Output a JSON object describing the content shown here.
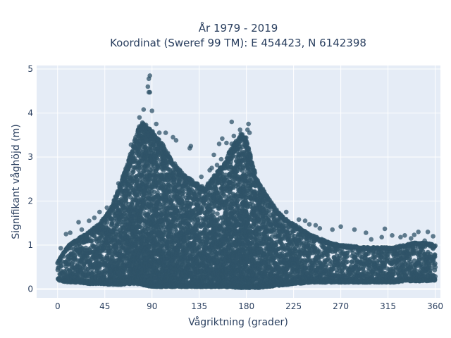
{
  "chart_data": {
    "type": "scatter",
    "title_lines": [
      "År 1979 - 2019",
      "Koordinat (Sweref 99 TM): E 454423, N 6142398"
    ],
    "xlabel": "Vågriktning (grader)",
    "ylabel": "Signifikant våghöjd (m)",
    "xlim": [
      -20,
      365
    ],
    "ylim": [
      -0.2,
      5.08
    ],
    "x_ticks": [
      0,
      45,
      90,
      135,
      180,
      225,
      270,
      315,
      360
    ],
    "x_tick_labels": [
      "0",
      "45",
      "90",
      "135",
      "180",
      "225",
      "270",
      "315",
      "360"
    ],
    "y_ticks": [
      0,
      1,
      2,
      3,
      4,
      5
    ],
    "y_tick_labels": [
      "0",
      "1",
      "2",
      "3",
      "4",
      "5"
    ],
    "grid": true,
    "legend": "none",
    "marker_color": "#2f5368",
    "plot_background": "#e5ecf6",
    "direction_range": [
      0,
      360
    ],
    "height_envelope": {
      "direction": [
        0,
        10,
        20,
        30,
        40,
        50,
        60,
        70,
        75,
        80,
        85,
        90,
        95,
        100,
        110,
        120,
        130,
        140,
        150,
        160,
        165,
        170,
        175,
        180,
        185,
        190,
        200,
        210,
        220,
        230,
        240,
        250,
        260,
        270,
        280,
        290,
        300,
        310,
        320,
        330,
        340,
        350,
        360
      ],
      "lower": [
        0.2,
        0.15,
        0.15,
        0.12,
        0.12,
        0.1,
        0.1,
        0.12,
        0.12,
        0.1,
        0.08,
        0.05,
        0.05,
        0.05,
        0.05,
        0.05,
        0.05,
        0.05,
        0.05,
        0.05,
        0.05,
        0.03,
        0.03,
        0.03,
        0.03,
        0.03,
        0.05,
        0.08,
        0.1,
        0.12,
        0.15,
        0.15,
        0.15,
        0.15,
        0.15,
        0.15,
        0.15,
        0.15,
        0.15,
        0.18,
        0.18,
        0.18,
        0.2
      ],
      "upper": [
        0.6,
        1.0,
        1.15,
        1.3,
        1.5,
        1.8,
        2.4,
        3.1,
        3.5,
        3.85,
        3.7,
        3.6,
        3.45,
        3.3,
        2.9,
        2.6,
        2.45,
        2.3,
        2.6,
        2.9,
        3.2,
        3.35,
        3.55,
        3.45,
        2.9,
        2.5,
        2.1,
        1.75,
        1.55,
        1.4,
        1.25,
        1.15,
        1.05,
        1.0,
        0.98,
        0.95,
        0.95,
        0.95,
        0.95,
        1.0,
        1.05,
        1.05,
        1.0
      ]
    },
    "outliers": [
      {
        "x": 88,
        "y": 4.85
      },
      {
        "x": 87,
        "y": 4.78
      },
      {
        "x": 86,
        "y": 4.6
      },
      {
        "x": 87,
        "y": 4.47
      },
      {
        "x": 88,
        "y": 4.47
      },
      {
        "x": 82,
        "y": 4.08
      },
      {
        "x": 90,
        "y": 4.05
      },
      {
        "x": 78,
        "y": 3.9
      },
      {
        "x": 94,
        "y": 3.75
      },
      {
        "x": 97,
        "y": 3.55
      },
      {
        "x": 103,
        "y": 3.55
      },
      {
        "x": 110,
        "y": 3.45
      },
      {
        "x": 113,
        "y": 3.38
      },
      {
        "x": 127,
        "y": 3.25
      },
      {
        "x": 126,
        "y": 3.2
      },
      {
        "x": 70,
        "y": 3.28
      },
      {
        "x": 166,
        "y": 3.8
      },
      {
        "x": 182,
        "y": 3.75
      },
      {
        "x": 174,
        "y": 3.62
      },
      {
        "x": 181,
        "y": 3.62
      },
      {
        "x": 183,
        "y": 3.55
      },
      {
        "x": 168,
        "y": 3.48
      },
      {
        "x": 157,
        "y": 3.42
      },
      {
        "x": 161,
        "y": 3.32
      },
      {
        "x": 154,
        "y": 3.3
      },
      {
        "x": 166,
        "y": 3.3
      },
      {
        "x": 149,
        "y": 3.05
      },
      {
        "x": 156,
        "y": 2.95
      },
      {
        "x": 152,
        "y": 2.82
      },
      {
        "x": 147,
        "y": 2.75
      },
      {
        "x": 165,
        "y": 3.05
      },
      {
        "x": 145,
        "y": 2.7
      },
      {
        "x": 137,
        "y": 2.55
      },
      {
        "x": 58,
        "y": 2.4
      },
      {
        "x": 55,
        "y": 2.1
      },
      {
        "x": 47,
        "y": 1.85
      },
      {
        "x": 40,
        "y": 1.75
      },
      {
        "x": 35,
        "y": 1.62
      },
      {
        "x": 30,
        "y": 1.55
      },
      {
        "x": 20,
        "y": 1.52
      },
      {
        "x": 23,
        "y": 1.35
      },
      {
        "x": 12,
        "y": 1.28
      },
      {
        "x": 8,
        "y": 1.25
      },
      {
        "x": 3,
        "y": 0.93
      },
      {
        "x": 218,
        "y": 1.75
      },
      {
        "x": 230,
        "y": 1.58
      },
      {
        "x": 236,
        "y": 1.55
      },
      {
        "x": 240,
        "y": 1.47
      },
      {
        "x": 246,
        "y": 1.45
      },
      {
        "x": 250,
        "y": 1.38
      },
      {
        "x": 262,
        "y": 1.35
      },
      {
        "x": 270,
        "y": 1.42
      },
      {
        "x": 283,
        "y": 1.35
      },
      {
        "x": 294,
        "y": 1.28
      },
      {
        "x": 309,
        "y": 1.18
      },
      {
        "x": 312,
        "y": 1.37
      },
      {
        "x": 319,
        "y": 1.22
      },
      {
        "x": 327,
        "y": 1.18
      },
      {
        "x": 331,
        "y": 1.22
      },
      {
        "x": 340,
        "y": 1.23
      },
      {
        "x": 344,
        "y": 1.3
      },
      {
        "x": 353,
        "y": 1.3
      },
      {
        "x": 358,
        "y": 1.2
      },
      {
        "x": 299,
        "y": 1.13
      },
      {
        "x": 337,
        "y": 1.15
      },
      {
        "x": 350,
        "y": 1.1
      }
    ]
  }
}
